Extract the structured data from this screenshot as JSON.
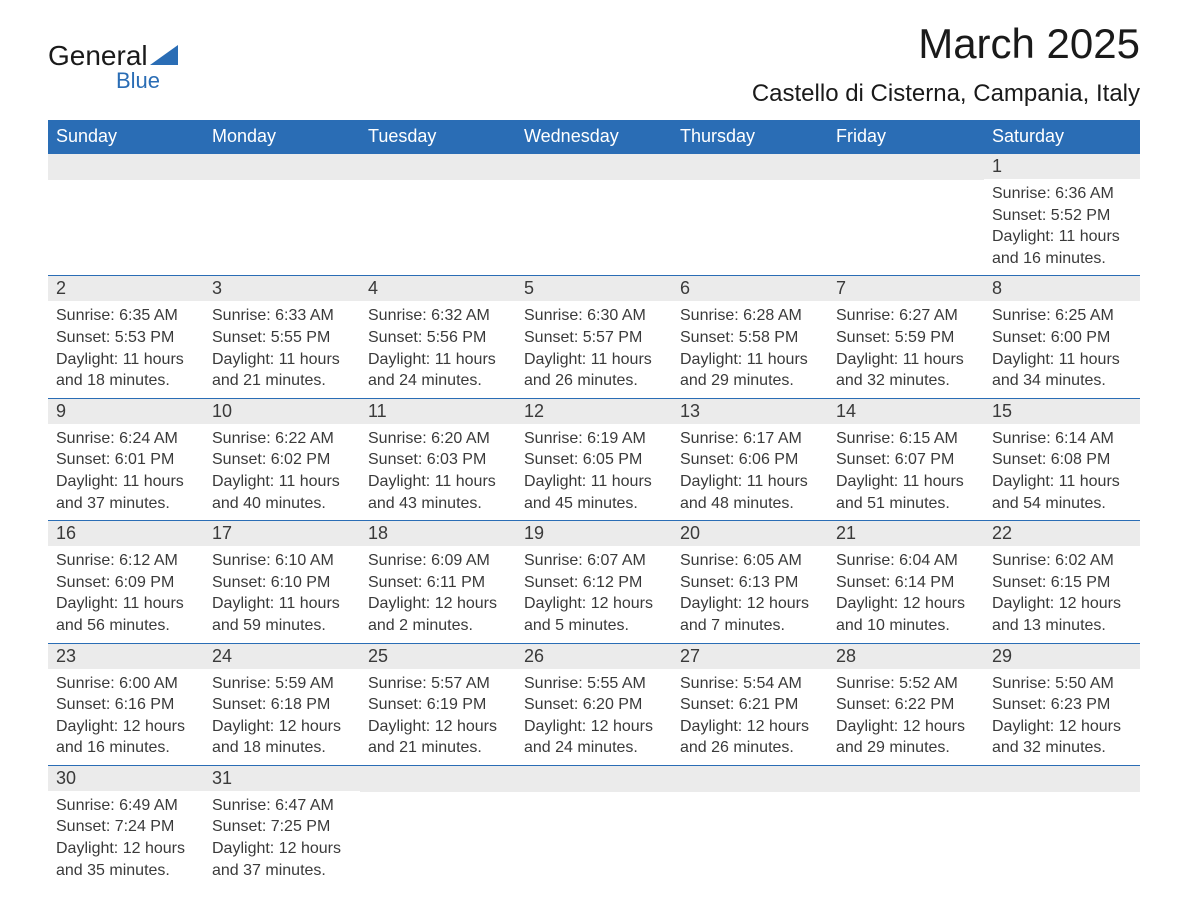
{
  "logo": {
    "text1": "General",
    "text2": "Blue",
    "triangle_color": "#2a6db5"
  },
  "header": {
    "title": "March 2025",
    "location": "Castello di Cisterna, Campania, Italy"
  },
  "colors": {
    "header_bg": "#2a6db5",
    "header_text": "#ffffff",
    "day_header_bg": "#ebebeb",
    "body_text": "#3a3a3a",
    "border": "#2a6db5"
  },
  "weekdays": [
    "Sunday",
    "Monday",
    "Tuesday",
    "Wednesday",
    "Thursday",
    "Friday",
    "Saturday"
  ],
  "weeks": [
    [
      null,
      null,
      null,
      null,
      null,
      null,
      {
        "day": "1",
        "sunrise": "Sunrise: 6:36 AM",
        "sunset": "Sunset: 5:52 PM",
        "daylight": "Daylight: 11 hours and 16 minutes."
      }
    ],
    [
      {
        "day": "2",
        "sunrise": "Sunrise: 6:35 AM",
        "sunset": "Sunset: 5:53 PM",
        "daylight": "Daylight: 11 hours and 18 minutes."
      },
      {
        "day": "3",
        "sunrise": "Sunrise: 6:33 AM",
        "sunset": "Sunset: 5:55 PM",
        "daylight": "Daylight: 11 hours and 21 minutes."
      },
      {
        "day": "4",
        "sunrise": "Sunrise: 6:32 AM",
        "sunset": "Sunset: 5:56 PM",
        "daylight": "Daylight: 11 hours and 24 minutes."
      },
      {
        "day": "5",
        "sunrise": "Sunrise: 6:30 AM",
        "sunset": "Sunset: 5:57 PM",
        "daylight": "Daylight: 11 hours and 26 minutes."
      },
      {
        "day": "6",
        "sunrise": "Sunrise: 6:28 AM",
        "sunset": "Sunset: 5:58 PM",
        "daylight": "Daylight: 11 hours and 29 minutes."
      },
      {
        "day": "7",
        "sunrise": "Sunrise: 6:27 AM",
        "sunset": "Sunset: 5:59 PM",
        "daylight": "Daylight: 11 hours and 32 minutes."
      },
      {
        "day": "8",
        "sunrise": "Sunrise: 6:25 AM",
        "sunset": "Sunset: 6:00 PM",
        "daylight": "Daylight: 11 hours and 34 minutes."
      }
    ],
    [
      {
        "day": "9",
        "sunrise": "Sunrise: 6:24 AM",
        "sunset": "Sunset: 6:01 PM",
        "daylight": "Daylight: 11 hours and 37 minutes."
      },
      {
        "day": "10",
        "sunrise": "Sunrise: 6:22 AM",
        "sunset": "Sunset: 6:02 PM",
        "daylight": "Daylight: 11 hours and 40 minutes."
      },
      {
        "day": "11",
        "sunrise": "Sunrise: 6:20 AM",
        "sunset": "Sunset: 6:03 PM",
        "daylight": "Daylight: 11 hours and 43 minutes."
      },
      {
        "day": "12",
        "sunrise": "Sunrise: 6:19 AM",
        "sunset": "Sunset: 6:05 PM",
        "daylight": "Daylight: 11 hours and 45 minutes."
      },
      {
        "day": "13",
        "sunrise": "Sunrise: 6:17 AM",
        "sunset": "Sunset: 6:06 PM",
        "daylight": "Daylight: 11 hours and 48 minutes."
      },
      {
        "day": "14",
        "sunrise": "Sunrise: 6:15 AM",
        "sunset": "Sunset: 6:07 PM",
        "daylight": "Daylight: 11 hours and 51 minutes."
      },
      {
        "day": "15",
        "sunrise": "Sunrise: 6:14 AM",
        "sunset": "Sunset: 6:08 PM",
        "daylight": "Daylight: 11 hours and 54 minutes."
      }
    ],
    [
      {
        "day": "16",
        "sunrise": "Sunrise: 6:12 AM",
        "sunset": "Sunset: 6:09 PM",
        "daylight": "Daylight: 11 hours and 56 minutes."
      },
      {
        "day": "17",
        "sunrise": "Sunrise: 6:10 AM",
        "sunset": "Sunset: 6:10 PM",
        "daylight": "Daylight: 11 hours and 59 minutes."
      },
      {
        "day": "18",
        "sunrise": "Sunrise: 6:09 AM",
        "sunset": "Sunset: 6:11 PM",
        "daylight": "Daylight: 12 hours and 2 minutes."
      },
      {
        "day": "19",
        "sunrise": "Sunrise: 6:07 AM",
        "sunset": "Sunset: 6:12 PM",
        "daylight": "Daylight: 12 hours and 5 minutes."
      },
      {
        "day": "20",
        "sunrise": "Sunrise: 6:05 AM",
        "sunset": "Sunset: 6:13 PM",
        "daylight": "Daylight: 12 hours and 7 minutes."
      },
      {
        "day": "21",
        "sunrise": "Sunrise: 6:04 AM",
        "sunset": "Sunset: 6:14 PM",
        "daylight": "Daylight: 12 hours and 10 minutes."
      },
      {
        "day": "22",
        "sunrise": "Sunrise: 6:02 AM",
        "sunset": "Sunset: 6:15 PM",
        "daylight": "Daylight: 12 hours and 13 minutes."
      }
    ],
    [
      {
        "day": "23",
        "sunrise": "Sunrise: 6:00 AM",
        "sunset": "Sunset: 6:16 PM",
        "daylight": "Daylight: 12 hours and 16 minutes."
      },
      {
        "day": "24",
        "sunrise": "Sunrise: 5:59 AM",
        "sunset": "Sunset: 6:18 PM",
        "daylight": "Daylight: 12 hours and 18 minutes."
      },
      {
        "day": "25",
        "sunrise": "Sunrise: 5:57 AM",
        "sunset": "Sunset: 6:19 PM",
        "daylight": "Daylight: 12 hours and 21 minutes."
      },
      {
        "day": "26",
        "sunrise": "Sunrise: 5:55 AM",
        "sunset": "Sunset: 6:20 PM",
        "daylight": "Daylight: 12 hours and 24 minutes."
      },
      {
        "day": "27",
        "sunrise": "Sunrise: 5:54 AM",
        "sunset": "Sunset: 6:21 PM",
        "daylight": "Daylight: 12 hours and 26 minutes."
      },
      {
        "day": "28",
        "sunrise": "Sunrise: 5:52 AM",
        "sunset": "Sunset: 6:22 PM",
        "daylight": "Daylight: 12 hours and 29 minutes."
      },
      {
        "day": "29",
        "sunrise": "Sunrise: 5:50 AM",
        "sunset": "Sunset: 6:23 PM",
        "daylight": "Daylight: 12 hours and 32 minutes."
      }
    ],
    [
      {
        "day": "30",
        "sunrise": "Sunrise: 6:49 AM",
        "sunset": "Sunset: 7:24 PM",
        "daylight": "Daylight: 12 hours and 35 minutes."
      },
      {
        "day": "31",
        "sunrise": "Sunrise: 6:47 AM",
        "sunset": "Sunset: 7:25 PM",
        "daylight": "Daylight: 12 hours and 37 minutes."
      },
      null,
      null,
      null,
      null,
      null
    ]
  ]
}
